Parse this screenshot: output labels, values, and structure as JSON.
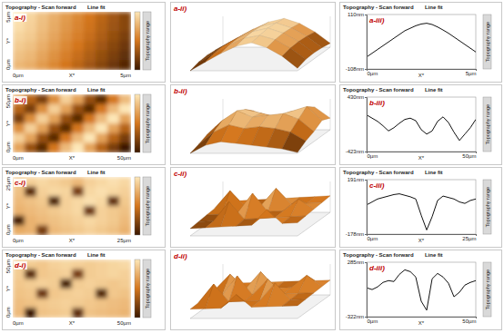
{
  "chart_data": [
    {
      "type": "heatmap",
      "panel_label": "a-i)",
      "title": "Topography - Scan forward",
      "subtitle": "Line fit",
      "side_label": "Topography range",
      "x_label": "X*",
      "y_label": "Y*",
      "xlim": [
        0,
        5
      ],
      "ylim": [
        0,
        5
      ],
      "xticks": [
        {
          "value": 0,
          "label": "0µm"
        },
        {
          "value": 5,
          "label": "5µm"
        }
      ],
      "yticks": [
        {
          "value": 0,
          "label": "0µm"
        },
        {
          "value": 5,
          "label": "5µm"
        }
      ],
      "zlim": [
        -60,
        60
      ],
      "z": [
        [
          60,
          50,
          40,
          30,
          20,
          10,
          0,
          -10,
          -20,
          -30
        ],
        [
          55,
          48,
          38,
          28,
          18,
          8,
          -2,
          -12,
          -22,
          -30
        ],
        [
          50,
          45,
          35,
          25,
          15,
          5,
          -5,
          -15,
          -25,
          -35
        ],
        [
          45,
          40,
          30,
          20,
          10,
          0,
          -10,
          -20,
          -30,
          -40
        ],
        [
          40,
          35,
          25,
          15,
          5,
          -5,
          -15,
          -25,
          -35,
          -45
        ],
        [
          35,
          30,
          20,
          10,
          0,
          -10,
          -20,
          -30,
          -40,
          -50
        ]
      ]
    },
    {
      "type": "surface",
      "panel_label": "a-ii)",
      "zlim": [
        -108,
        110
      ],
      "z": [
        [
          -100,
          -40,
          20,
          70,
          95,
          60,
          0,
          -80
        ],
        [
          -90,
          -30,
          30,
          80,
          105,
          70,
          10,
          -70
        ],
        [
          -85,
          -25,
          35,
          85,
          110,
          75,
          15,
          -65
        ],
        [
          -90,
          -30,
          30,
          80,
          100,
          70,
          10,
          -70
        ],
        [
          -108,
          -45,
          15,
          65,
          90,
          55,
          -5,
          -90
        ]
      ]
    },
    {
      "type": "line",
      "panel_label": "a-iii)",
      "title": "Topography - Scan forward",
      "subtitle": "Line fit",
      "side_label": "Topography range",
      "x_label": "X*",
      "color": "#111111",
      "x": [
        0,
        0.25,
        0.5,
        0.75,
        1,
        1.25,
        1.5,
        1.75,
        2,
        2.25,
        2.5,
        2.75,
        3,
        3.25,
        3.5,
        3.75,
        4,
        4.25,
        4.5,
        4.75,
        5
      ],
      "values": [
        -60,
        -45,
        -30,
        -15,
        0,
        15,
        30,
        45,
        55,
        65,
        72,
        75,
        70,
        60,
        48,
        35,
        20,
        5,
        -10,
        -25,
        -40
      ],
      "xlim": [
        0,
        5
      ],
      "xticks": [
        {
          "value": 0,
          "label": "0µm"
        },
        {
          "value": 5,
          "label": "5µm"
        }
      ],
      "ylim": [
        -108,
        110
      ],
      "yticks": [
        {
          "value": -108,
          "label": "-108nm"
        },
        {
          "value": 110,
          "label": "110nm"
        }
      ]
    },
    {
      "type": "heatmap",
      "panel_label": "b-i)",
      "title": "Topography - Scan forward",
      "subtitle": "Line fit",
      "side_label": "Topography range",
      "x_label": "X*",
      "y_label": "Y*",
      "xlim": [
        0,
        50
      ],
      "ylim": [
        0,
        50
      ],
      "xticks": [
        {
          "value": 0,
          "label": "0µm"
        },
        {
          "value": 50,
          "label": "50µm"
        }
      ],
      "yticks": [
        {
          "value": 0,
          "label": "0µm"
        },
        {
          "value": 50,
          "label": "50µm"
        }
      ],
      "zlim": [
        -250,
        250
      ],
      "z": [
        [
          100,
          -50,
          -150,
          50,
          200,
          100,
          -100,
          -200,
          0,
          150
        ],
        [
          -50,
          -150,
          50,
          200,
          100,
          -100,
          -200,
          0,
          150,
          250
        ],
        [
          -150,
          50,
          200,
          100,
          -100,
          -200,
          0,
          150,
          250,
          100
        ],
        [
          50,
          200,
          100,
          -100,
          -200,
          0,
          150,
          250,
          100,
          -50
        ],
        [
          200,
          100,
          -100,
          -200,
          0,
          150,
          250,
          100,
          -50,
          -150
        ],
        [
          100,
          -100,
          -200,
          0,
          150,
          250,
          100,
          -50,
          -150,
          -250
        ]
      ]
    },
    {
      "type": "surface",
      "panel_label": "b-ii)",
      "zlim": [
        -423,
        430
      ],
      "z": [
        [
          -300,
          -100,
          100,
          -50,
          -200,
          50,
          200,
          -100
        ],
        [
          -200,
          100,
          300,
          200,
          100,
          250,
          380,
          0
        ],
        [
          -250,
          150,
          430,
          250,
          300,
          350,
          200,
          -150
        ],
        [
          -350,
          0,
          200,
          100,
          150,
          100,
          0,
          -250
        ],
        [
          -423,
          -200,
          -100,
          -150,
          -200,
          -250,
          -300,
          -400
        ]
      ]
    },
    {
      "type": "line",
      "panel_label": "b-iii)",
      "title": "Topography - Scan forward",
      "subtitle": "Line fit",
      "side_label": "Topography range",
      "x_label": "X*",
      "color": "#111111",
      "x": [
        0,
        2.5,
        5,
        7.5,
        10,
        12.5,
        15,
        17.5,
        20,
        22.5,
        25,
        27.5,
        30,
        32.5,
        35,
        37.5,
        40,
        42.5,
        45,
        47.5,
        50
      ],
      "values": [
        150,
        100,
        50,
        -20,
        -100,
        -50,
        20,
        80,
        100,
        60,
        -80,
        -150,
        -100,
        50,
        120,
        30,
        -120,
        -250,
        -150,
        -50,
        80
      ],
      "xlim": [
        0,
        50
      ],
      "xticks": [
        {
          "value": 0,
          "label": "0µm"
        },
        {
          "value": 50,
          "label": "50µm"
        }
      ],
      "ylim": [
        -423,
        430
      ],
      "yticks": [
        {
          "value": -423,
          "label": "-423nm"
        },
        {
          "value": 430,
          "label": "430nm"
        }
      ]
    },
    {
      "type": "heatmap",
      "panel_label": "c-i)",
      "title": "Topography - Scan forward",
      "subtitle": "Line fit",
      "side_label": "Topography range",
      "x_label": "X*",
      "y_label": "Y*",
      "xlim": [
        0,
        25
      ],
      "ylim": [
        0,
        25
      ],
      "xticks": [
        {
          "value": 0,
          "label": "0µm"
        },
        {
          "value": 25,
          "label": "25µm"
        }
      ],
      "yticks": [
        {
          "value": 0,
          "label": "0µm"
        },
        {
          "value": 25,
          "label": "25µm"
        }
      ],
      "zlim": [
        -180,
        120
      ],
      "z": [
        [
          80,
          90,
          100,
          90,
          80,
          60,
          90,
          100,
          110,
          100
        ],
        [
          70,
          -150,
          90,
          100,
          95,
          -120,
          100,
          110,
          100,
          90
        ],
        [
          60,
          70,
          80,
          -160,
          90,
          100,
          110,
          100,
          -140,
          80
        ],
        [
          50,
          60,
          70,
          80,
          90,
          100,
          -130,
          90,
          80,
          70
        ],
        [
          -170,
          50,
          60,
          70,
          80,
          90,
          100,
          90,
          80,
          60
        ],
        [
          40,
          50,
          -120,
          60,
          70,
          80,
          90,
          80,
          70,
          50
        ]
      ]
    },
    {
      "type": "surface",
      "panel_label": "c-ii)",
      "zlim": [
        -178,
        191
      ],
      "z": [
        [
          -50,
          -40,
          -30,
          -20,
          -10,
          0,
          10,
          20
        ],
        [
          -60,
          150,
          -40,
          -30,
          180,
          -10,
          0,
          10
        ],
        [
          -70,
          -60,
          -50,
          191,
          -30,
          -20,
          120,
          0
        ],
        [
          -80,
          -70,
          160,
          -50,
          -40,
          -30,
          -20,
          -10
        ],
        [
          -90,
          -80,
          -70,
          -60,
          -50,
          140,
          -30,
          -20
        ]
      ]
    },
    {
      "type": "line",
      "panel_label": "c-iii)",
      "title": "Topography - Scan forward",
      "subtitle": "Line fit",
      "side_label": "Topography range",
      "x_label": "X*",
      "color": "#111111",
      "x": [
        0,
        1.25,
        2.5,
        3.75,
        5,
        6.25,
        7.5,
        8.75,
        10,
        11.25,
        12.5,
        13.75,
        15,
        16.25,
        17.5,
        18.75,
        20,
        21.25,
        22.5,
        23.75,
        25
      ],
      "values": [
        20,
        40,
        60,
        70,
        80,
        90,
        95,
        85,
        75,
        60,
        -50,
        -150,
        -60,
        50,
        80,
        70,
        60,
        40,
        30,
        50,
        60
      ],
      "xlim": [
        0,
        25
      ],
      "xticks": [
        {
          "value": 0,
          "label": "0µm"
        },
        {
          "value": 25,
          "label": "25µm"
        }
      ],
      "ylim": [
        -178,
        191
      ],
      "yticks": [
        {
          "value": -178,
          "label": "-178nm"
        },
        {
          "value": 191,
          "label": "191nm"
        }
      ]
    },
    {
      "type": "heatmap",
      "panel_label": "d-i)",
      "title": "Topography - Scan forward",
      "subtitle": "Line fit",
      "side_label": "Topography range",
      "x_label": "X*",
      "y_label": "Y*",
      "xlim": [
        0,
        50
      ],
      "ylim": [
        0,
        50
      ],
      "xticks": [
        {
          "value": 0,
          "label": "0µm"
        },
        {
          "value": 50,
          "label": "50µm"
        }
      ],
      "yticks": [
        {
          "value": 0,
          "label": "0µm"
        },
        {
          "value": 50,
          "label": "50µm"
        }
      ],
      "zlim": [
        -300,
        200
      ],
      "z": [
        [
          150,
          140,
          130,
          150,
          160,
          150,
          140,
          150,
          160,
          170
        ],
        [
          140,
          -250,
          130,
          140,
          150,
          -200,
          140,
          150,
          160,
          150
        ],
        [
          130,
          140,
          150,
          140,
          -280,
          140,
          150,
          140,
          130,
          140
        ],
        [
          120,
          130,
          -220,
          130,
          140,
          150,
          140,
          -260,
          130,
          120
        ],
        [
          110,
          120,
          130,
          140,
          150,
          140,
          130,
          120,
          110,
          100
        ],
        [
          100,
          -300,
          120,
          130,
          140,
          -240,
          120,
          110,
          100,
          90
        ]
      ]
    },
    {
      "type": "surface",
      "panel_label": "d-ii)",
      "zlim": [
        -322,
        285
      ],
      "z": [
        [
          -100,
          -90,
          -80,
          -70,
          -60,
          -50,
          -40,
          -30
        ],
        [
          -110,
          200,
          -90,
          250,
          -70,
          -60,
          180,
          -40
        ],
        [
          -120,
          -110,
          285,
          -90,
          220,
          -70,
          -60,
          -50
        ],
        [
          -130,
          240,
          -110,
          -100,
          -90,
          260,
          -70,
          -60
        ],
        [
          -140,
          -130,
          -120,
          150,
          -100,
          -90,
          -80,
          -70
        ]
      ]
    },
    {
      "type": "line",
      "panel_label": "d-iii)",
      "title": "Topography - Scan forward",
      "subtitle": "Line fit",
      "side_label": "Topography range",
      "x_label": "X*",
      "color": "#111111",
      "x": [
        0,
        2.5,
        5,
        7.5,
        10,
        12.5,
        15,
        17.5,
        20,
        22.5,
        25,
        27.5,
        30,
        32.5,
        35,
        37.5,
        40,
        42.5,
        45,
        47.5,
        50
      ],
      "values": [
        0,
        -20,
        10,
        60,
        80,
        70,
        150,
        200,
        180,
        120,
        -150,
        -250,
        100,
        160,
        120,
        50,
        -100,
        -50,
        30,
        60,
        80
      ],
      "xlim": [
        0,
        50
      ],
      "xticks": [
        {
          "value": 0,
          "label": "0µm"
        },
        {
          "value": 50,
          "label": "50µm"
        }
      ],
      "ylim": [
        -322,
        285
      ],
      "yticks": [
        {
          "value": -322,
          "label": "-322nm"
        },
        {
          "value": 285,
          "label": "285nm"
        }
      ]
    }
  ]
}
